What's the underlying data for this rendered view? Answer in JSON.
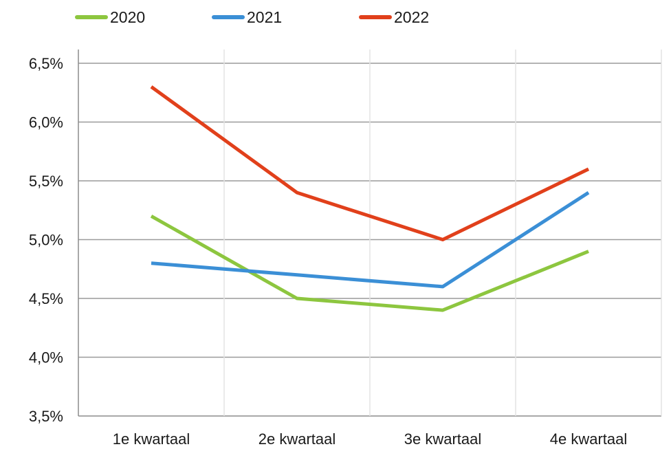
{
  "chart_data": {
    "type": "line",
    "categories": [
      "1e kwartaal",
      "2e kwartaal",
      "3e kwartaal",
      "4e kwartaal"
    ],
    "y_ticks": [
      "3,5%",
      "4,0%",
      "4,5%",
      "5,0%",
      "5,5%",
      "6,0%",
      "6,5%"
    ],
    "ylim": [
      3.5,
      6.5
    ],
    "grid": true,
    "legend_position": "top-left",
    "series": [
      {
        "name": "2020",
        "color": "#8dc63f",
        "values": [
          5.2,
          4.5,
          4.4,
          4.9
        ]
      },
      {
        "name": "2021",
        "color": "#3b8fd6",
        "values": [
          4.8,
          4.7,
          4.6,
          5.4
        ]
      },
      {
        "name": "2022",
        "color": "#e1401b",
        "values": [
          6.3,
          5.4,
          5.0,
          5.6
        ]
      }
    ]
  }
}
